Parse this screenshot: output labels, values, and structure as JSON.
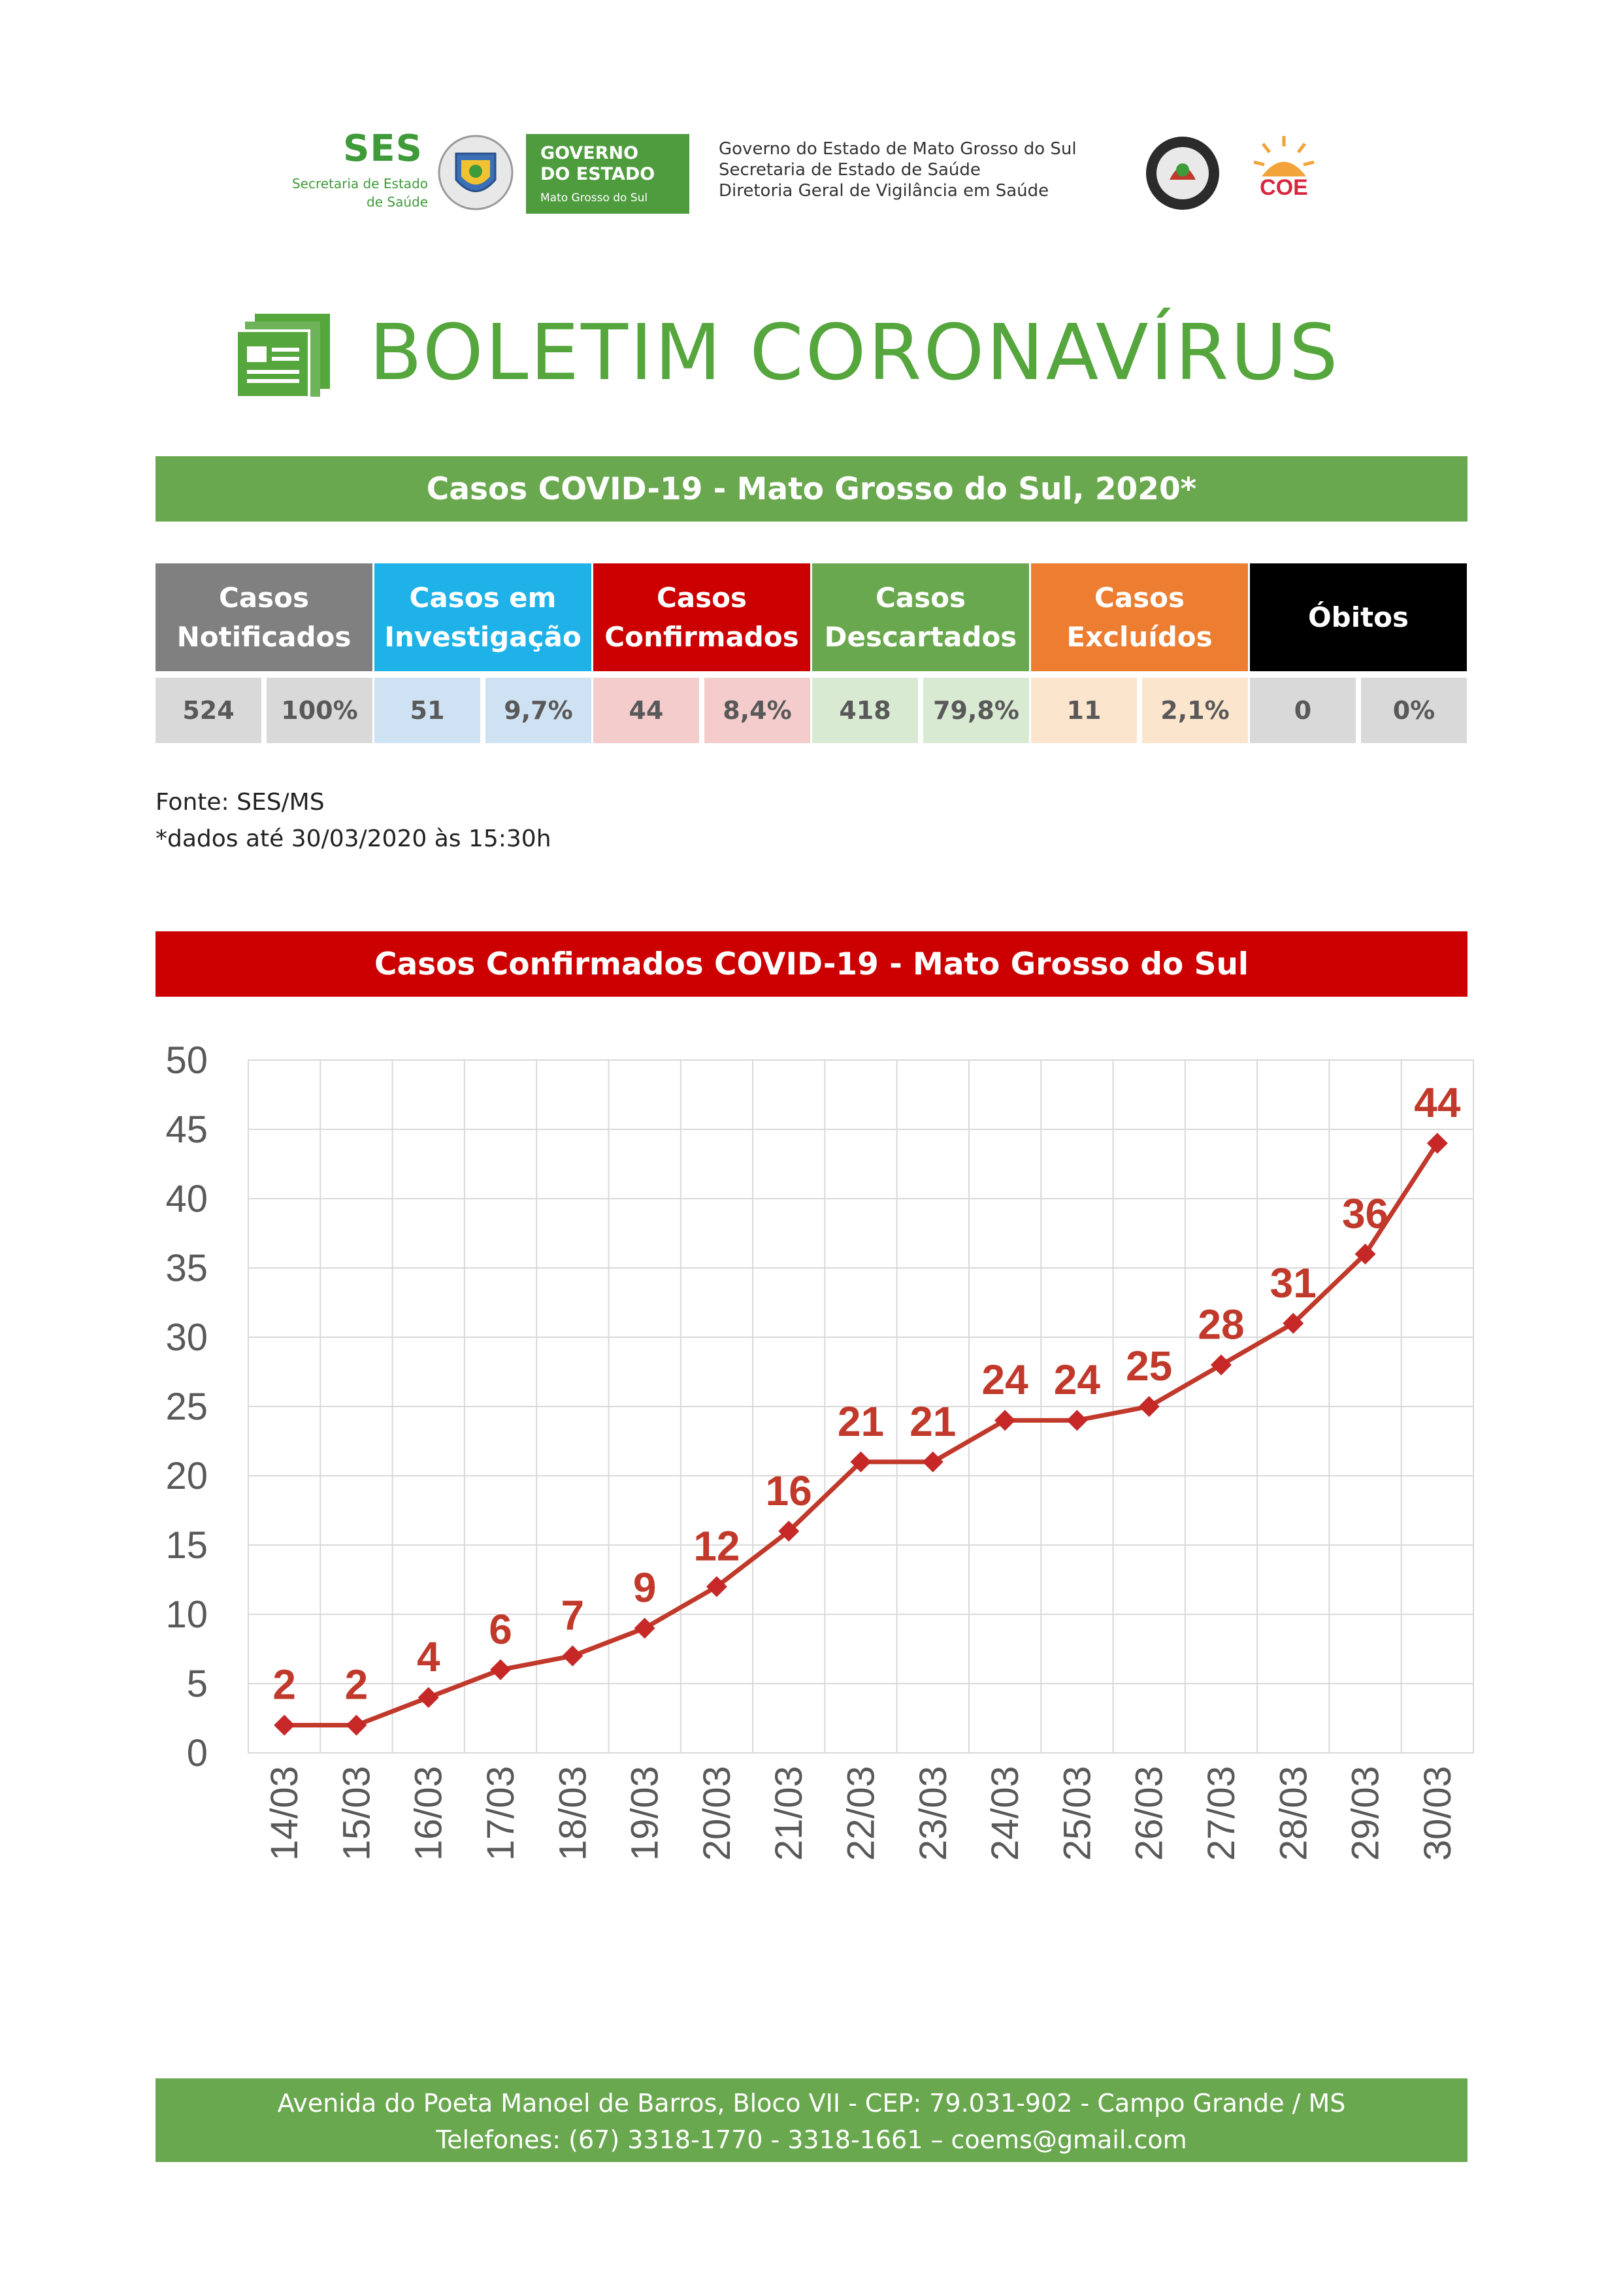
{
  "header": {
    "ses_logo": "SES",
    "ses_subtitle_line1": "Secretaria de Estado",
    "ses_subtitle_line2": "de Saúde",
    "gov_badge_line1": "GOVERNO",
    "gov_badge_line2": "DO ESTADO",
    "gov_badge_line3": "Mato Grosso do Sul",
    "gov_text_line1": "Governo do Estado de Mato Grosso do Sul",
    "gov_text_line2": "Secretaria de Estado de Saúde",
    "gov_text_line3": "Diretoria Geral de Vigilância em Saúde",
    "coe_logo": "COE"
  },
  "title": "BOLETIM CORONAVÍRUS",
  "cases_header": "Casos COVID-19 - Mato Grosso do Sul, 2020*",
  "stats": [
    {
      "line1": "Casos",
      "line2": "Notificados",
      "value": "524",
      "percent": "100%",
      "color": "#808080",
      "light": "#d9d9d9"
    },
    {
      "line1": "Casos em",
      "line2": "Investigação",
      "value": "51",
      "percent": "9,7%",
      "color": "#1fb2e8",
      "light": "#cfe2f3"
    },
    {
      "line1": "Casos",
      "line2": "Confirmados",
      "value": "44",
      "percent": "8,4%",
      "color": "#cc0000",
      "light": "#f4cccc"
    },
    {
      "line1": "Casos",
      "line2": "Descartados",
      "value": "418",
      "percent": "79,8%",
      "color": "#6aa84f",
      "light": "#d9ead3"
    },
    {
      "line1": "Casos",
      "line2": "Excluídos",
      "value": "11",
      "percent": "2,1%",
      "color": "#ed7d31",
      "light": "#fce5cd"
    },
    {
      "line1": "Óbitos",
      "line2": "",
      "value": "0",
      "percent": "0%",
      "color": "#000000",
      "light": "#d9d9d9"
    }
  ],
  "source_line1": "Fonte: SES/MS",
  "source_line2": "*dados até 30/03/2020 às 15:30h",
  "chart_header": "Casos Confirmados COVID-19 -  Mato Grosso do Sul",
  "chart_data": {
    "type": "line",
    "categories": [
      "14/03",
      "15/03",
      "16/03",
      "17/03",
      "18/03",
      "19/03",
      "20/03",
      "21/03",
      "22/03",
      "23/03",
      "24/03",
      "25/03",
      "26/03",
      "27/03",
      "28/03",
      "29/03",
      "30/03"
    ],
    "values": [
      2,
      2,
      4,
      6,
      7,
      9,
      12,
      16,
      21,
      21,
      24,
      24,
      25,
      28,
      31,
      36,
      44
    ],
    "ylim": [
      0,
      50
    ],
    "yticks": [
      0,
      5,
      10,
      15,
      20,
      25,
      30,
      35,
      40,
      45,
      50
    ],
    "grid": true,
    "line_color": "#c0392b",
    "label_color": "#c0392b"
  },
  "footer_line1": "Avenida do Poeta Manoel de Barros, Bloco VII - CEP: 79.031-902 - Campo Grande / MS",
  "footer_line2": "Telefones: (67) 3318-1770 - 3318-1661 – coems@gmail.com"
}
